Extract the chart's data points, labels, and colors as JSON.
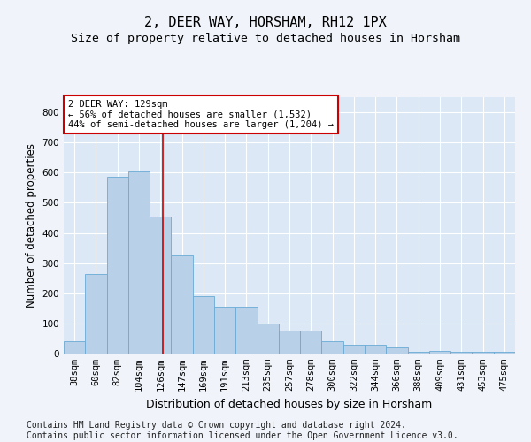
{
  "title": "2, DEER WAY, HORSHAM, RH12 1PX",
  "subtitle": "Size of property relative to detached houses in Horsham",
  "xlabel": "Distribution of detached houses by size in Horsham",
  "ylabel": "Number of detached properties",
  "categories": [
    "38sqm",
    "60sqm",
    "82sqm",
    "104sqm",
    "126sqm",
    "147sqm",
    "169sqm",
    "191sqm",
    "213sqm",
    "235sqm",
    "257sqm",
    "278sqm",
    "300sqm",
    "322sqm",
    "344sqm",
    "366sqm",
    "388sqm",
    "409sqm",
    "431sqm",
    "453sqm",
    "475sqm"
  ],
  "values": [
    40,
    265,
    585,
    605,
    455,
    325,
    190,
    155,
    155,
    100,
    75,
    75,
    40,
    30,
    30,
    20,
    5,
    10,
    5,
    5,
    5
  ],
  "bar_color": "#b8d0e8",
  "bar_edgecolor": "#6aaad4",
  "vline_color": "#cc0000",
  "annotation_text": "2 DEER WAY: 129sqm\n← 56% of detached houses are smaller (1,532)\n44% of semi-detached houses are larger (1,204) →",
  "annotation_box_color": "#ffffff",
  "annotation_box_edgecolor": "#cc0000",
  "ylim": [
    0,
    850
  ],
  "yticks": [
    0,
    100,
    200,
    300,
    400,
    500,
    600,
    700,
    800
  ],
  "bg_color": "#f0f4fa",
  "plot_bg_color": "#dce8f5",
  "footer": "Contains HM Land Registry data © Crown copyright and database right 2024.\nContains public sector information licensed under the Open Government Licence v3.0.",
  "title_fontsize": 11,
  "subtitle_fontsize": 9.5,
  "xlabel_fontsize": 9,
  "ylabel_fontsize": 8.5,
  "footer_fontsize": 7,
  "tick_fontsize": 7.5,
  "ann_fontsize": 7.5
}
